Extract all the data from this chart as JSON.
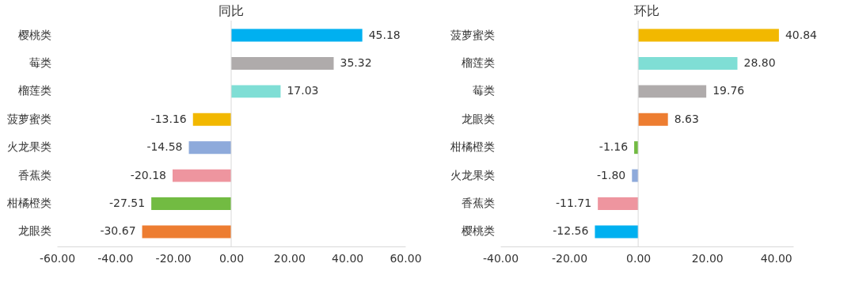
{
  "chart_data": [
    {
      "type": "bar",
      "orientation": "horizontal",
      "title": "同比",
      "categories": [
        "樱桃类",
        "莓类",
        "榴莲类",
        "菠萝蜜类",
        "火龙果类",
        "香蕉类",
        "柑橘橙类",
        "龙眼类"
      ],
      "values": [
        45.18,
        35.32,
        17.03,
        -13.16,
        -14.58,
        -20.18,
        -27.51,
        -30.67
      ],
      "value_labels": [
        "45.18",
        "35.32",
        "17.03",
        "-13.16",
        "-14.58",
        "-20.18",
        "-27.51",
        "-30.67"
      ],
      "colors": [
        "#00b0f0",
        "#afabab",
        "#7fded5",
        "#f2b800",
        "#8eaadb",
        "#ee959f",
        "#72bb42",
        "#ed7d31"
      ],
      "xlim": [
        -60,
        60
      ],
      "xticks": [
        {
          "value": -60,
          "label": "-60.00"
        },
        {
          "value": -40,
          "label": "-40.00"
        },
        {
          "value": -20,
          "label": "-20.00"
        },
        {
          "value": 0,
          "label": "0.00"
        },
        {
          "value": 20,
          "label": "20.00"
        },
        {
          "value": 40,
          "label": "40.00"
        },
        {
          "value": 60,
          "label": "60.00"
        }
      ],
      "ref_lines": [
        {
          "axis": "x",
          "value": 0,
          "color": "#d9d9d9"
        }
      ],
      "grid": false,
      "legend": false
    },
    {
      "type": "bar",
      "orientation": "horizontal",
      "title": "环比",
      "categories": [
        "菠萝蜜类",
        "榴莲类",
        "莓类",
        "龙眼类",
        "柑橘橙类",
        "火龙果类",
        "香蕉类",
        "樱桃类"
      ],
      "values": [
        40.84,
        28.8,
        19.76,
        8.63,
        -1.16,
        -1.8,
        -11.71,
        -12.56
      ],
      "value_labels": [
        "40.84",
        "28.80",
        "19.76",
        "8.63",
        "-1.16",
        "-1.80",
        "-11.71",
        "-12.56"
      ],
      "colors": [
        "#f2b800",
        "#7fded5",
        "#afabab",
        "#ed7d31",
        "#72bb42",
        "#8eaadb",
        "#ee959f",
        "#00b0f0"
      ],
      "xlim": [
        -40,
        45
      ],
      "xticks": [
        {
          "value": -40,
          "label": "-40.00"
        },
        {
          "value": -20,
          "label": "-20.00"
        },
        {
          "value": 0,
          "label": "0.00"
        },
        {
          "value": 20,
          "label": "20.00"
        },
        {
          "value": 40,
          "label": "40.00"
        }
      ],
      "ref_lines": [
        {
          "axis": "x",
          "value": 0,
          "color": "#d9d9d9"
        }
      ],
      "grid": false,
      "legend": false
    }
  ]
}
